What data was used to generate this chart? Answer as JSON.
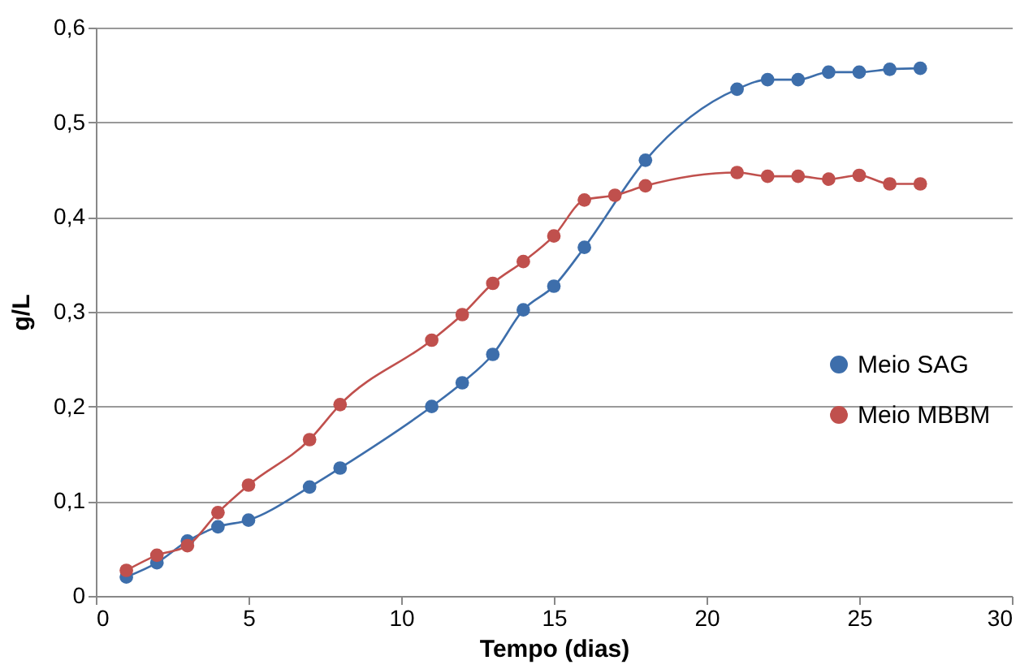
{
  "chart_data": {
    "type": "line",
    "xlabel": "Tempo (dias)",
    "ylabel": "g/L",
    "xlim": [
      0,
      30
    ],
    "xticks": [
      0,
      5,
      10,
      15,
      20,
      25,
      30
    ],
    "ylim": [
      0,
      0.6
    ],
    "yticks": [
      0,
      {
        "value": 0.1,
        "label": "0,1"
      },
      {
        "value": 0.2,
        "label": "0,2"
      },
      {
        "value": 0.3,
        "label": "0,3"
      },
      {
        "value": 0.4,
        "label": "0,4"
      },
      {
        "value": 0.5,
        "label": "0,5"
      },
      {
        "value": 0.6,
        "label": "0,6"
      }
    ],
    "grid": "y",
    "legend": "right",
    "marker": "circle",
    "line_style": "solid",
    "series": [
      {
        "name": "Meio SAG",
        "color": "#3d6eab",
        "x": [
          1,
          2,
          3,
          4,
          5,
          7,
          8,
          11,
          12,
          13,
          14,
          15,
          16,
          18,
          21,
          22,
          23,
          24,
          25,
          26,
          27
        ],
        "values": [
          0.02,
          0.035,
          0.058,
          0.073,
          0.08,
          0.115,
          0.135,
          0.2,
          0.225,
          0.255,
          0.302,
          0.327,
          0.368,
          0.46,
          0.535,
          0.545,
          0.545,
          0.553,
          0.553,
          0.556,
          0.557
        ]
      },
      {
        "name": "Meio MBBM",
        "color": "#c0504d",
        "x": [
          1,
          2,
          3,
          4,
          5,
          7,
          8,
          11,
          12,
          13,
          14,
          15,
          16,
          17,
          18,
          21,
          22,
          23,
          24,
          25,
          26,
          27
        ],
        "values": [
          0.027,
          0.043,
          0.053,
          0.088,
          0.117,
          0.165,
          0.202,
          0.27,
          0.297,
          0.33,
          0.353,
          0.38,
          0.418,
          0.423,
          0.433,
          0.447,
          0.443,
          0.443,
          0.44,
          0.444,
          0.435,
          0.435
        ]
      }
    ]
  }
}
